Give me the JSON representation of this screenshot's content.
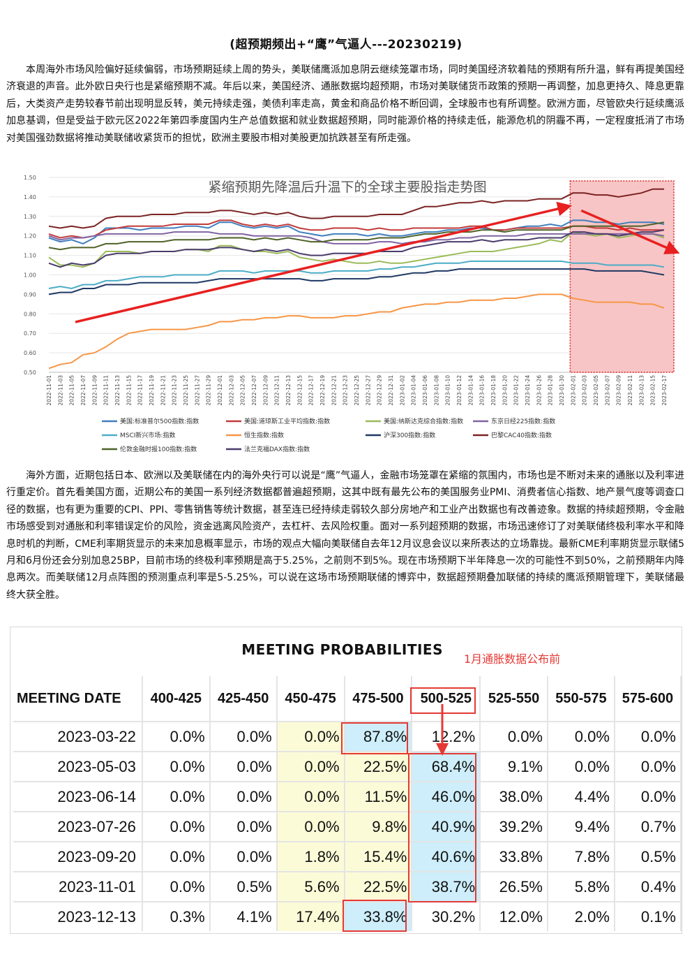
{
  "doc": {
    "title": "(超预期频出+“鹰”气逼人---20230219)",
    "paragraph1": "本周海外市场风险偏好延续偏弱，市场预期延续上周的势头，美联储鹰派加息阴云继续笼罩市场，同时美国经济软着陆的预期有所升温，鲜有再提美国经济衰退的声音。此外欧日央行也是紧缩预期不减。年后以来，美国经济、通胀数据均超预期，市场对美联储货币政策的预期一再调整，加息更持久、降息更靠后，大类资产走势较春节前出现明显反转，美元持续走强，美债利率走高，黄金和商品价格不断回调，全球股市也有所调整。欧洲方面，尽管欧央行延续鹰派加息基调，但是受益于欧元区2022年第四季度国内生产总值数据和就业数据超预期，同时能源价格的持续走低，能源危机的阴霾不再，一定程度抵消了市场对美国强劲数据将推动美联储收紧货币的担忧，欧洲主要股市相对美股更加抗跌甚至有所走强。",
    "paragraph2": "海外方面，近期包括日本、欧洲以及美联储在内的海外央行可以说是“鹰”气逼人，金融市场笼罩在紧缩的氛围内，市场也是不断对未来的通胀以及利率进行重定价。首先看美国方面，近期公布的美国一系列经济数据都普遍超预期，这其中既有最先公布的美国服务业PMI、消费者信心指数、地产景气度等调查口径的数据，也有更为重要的CPI、PPI、零售销售等统计数据，甚至连已经持续走弱较久部分房地产和工业产出数据也有改善迹象。数据的持续超预期，令金融市场感受到对通胀和利率错误定价的风险，资金逃离风险资产，去杠杆、去风险权重。面对一系列超预期的数据，市场迅速修订了对美联储终极利率水平和降息时机的判断，CME利率期货显示的未来加息概率显示，市场的观点大幅向美联储自去年12月议息会议以来所表达的立场靠拢。最新CME利率期货显示联储5月和6月份还会分别加息25BP，目前市场的终极利率预期是高于5.25%，之前则不到5%。现在市场预期下半年降息一次的可能性不到50%，之前预期年内降息两次。而美联储12月点阵图的预测重点利率是5-5.25%，可以说在这场市场预期联储的博弈中，数据超预期叠加联储的持续的鹰派预期管理下，美联储最终大获全胜。"
  },
  "chart_data": {
    "type": "line",
    "title": "紧缩预期先降温后升温下的全球主要股指走势图",
    "ylim": [
      0.5,
      1.5
    ],
    "yticks": [
      "1.50",
      "1.40",
      "1.30",
      "1.20",
      "1.10",
      "1.00",
      "0.90",
      "0.80",
      "0.70",
      "0.60",
      "0.50"
    ],
    "x": [
      "2022-11-01",
      "2022-11-03",
      "2022-11-05",
      "2022-11-07",
      "2022-11-09",
      "2022-11-11",
      "2022-11-13",
      "2022-11-15",
      "2022-11-17",
      "2022-11-19",
      "2022-11-21",
      "2022-11-23",
      "2022-11-25",
      "2022-11-27",
      "2022-11-29",
      "2022-12-01",
      "2022-12-03",
      "2022-12-05",
      "2022-12-07",
      "2022-12-09",
      "2022-12-11",
      "2022-12-13",
      "2022-12-15",
      "2022-12-17",
      "2022-12-19",
      "2022-12-21",
      "2022-12-23",
      "2022-12-25",
      "2022-12-27",
      "2022-12-29",
      "2022-12-31",
      "2023-01-02",
      "2023-01-04",
      "2023-01-06",
      "2023-01-08",
      "2023-01-10",
      "2023-01-12",
      "2023-01-14",
      "2023-01-16",
      "2023-01-18",
      "2023-01-20",
      "2023-01-22",
      "2023-01-24",
      "2023-01-26",
      "2023-01-28",
      "2023-01-30",
      "2023-02-01",
      "2023-02-03",
      "2023-02-05",
      "2023-02-07",
      "2023-02-09",
      "2023-02-11",
      "2023-02-13",
      "2023-02-15",
      "2023-02-17"
    ],
    "series": [
      {
        "name": "美国:标准普尔500指数:指数",
        "color": "#3f7fbf",
        "values": [
          1.19,
          1.17,
          1.18,
          1.16,
          1.19,
          1.24,
          1.24,
          1.24,
          1.23,
          1.24,
          1.24,
          1.24,
          1.25,
          1.25,
          1.24,
          1.27,
          1.27,
          1.25,
          1.24,
          1.25,
          1.24,
          1.25,
          1.22,
          1.21,
          1.2,
          1.21,
          1.21,
          1.21,
          1.2,
          1.21,
          1.2,
          1.2,
          1.21,
          1.22,
          1.22,
          1.23,
          1.23,
          1.24,
          1.24,
          1.23,
          1.23,
          1.24,
          1.25,
          1.25,
          1.26,
          1.25,
          1.28,
          1.28,
          1.27,
          1.27,
          1.26,
          1.27,
          1.27,
          1.27,
          1.26
        ]
      },
      {
        "name": "美国:道琼斯工业平均指数:指数",
        "color": "#c23b3b",
        "values": [
          1.21,
          1.19,
          1.2,
          1.19,
          1.2,
          1.23,
          1.24,
          1.25,
          1.25,
          1.25,
          1.25,
          1.26,
          1.26,
          1.26,
          1.26,
          1.28,
          1.28,
          1.26,
          1.25,
          1.26,
          1.25,
          1.26,
          1.24,
          1.23,
          1.23,
          1.24,
          1.24,
          1.24,
          1.23,
          1.24,
          1.23,
          1.23,
          1.24,
          1.24,
          1.24,
          1.24,
          1.24,
          1.25,
          1.25,
          1.23,
          1.23,
          1.24,
          1.24,
          1.24,
          1.24,
          1.24,
          1.25,
          1.25,
          1.24,
          1.24,
          1.23,
          1.24,
          1.23,
          1.23,
          1.23
        ]
      },
      {
        "name": "美国:纳斯达克综合指数:指数",
        "color": "#9bbb59",
        "values": [
          1.09,
          1.05,
          1.05,
          1.04,
          1.06,
          1.12,
          1.12,
          1.12,
          1.11,
          1.12,
          1.12,
          1.12,
          1.13,
          1.13,
          1.12,
          1.15,
          1.15,
          1.13,
          1.12,
          1.12,
          1.11,
          1.12,
          1.09,
          1.08,
          1.07,
          1.08,
          1.07,
          1.06,
          1.06,
          1.07,
          1.06,
          1.06,
          1.07,
          1.08,
          1.09,
          1.1,
          1.11,
          1.12,
          1.12,
          1.12,
          1.13,
          1.14,
          1.15,
          1.16,
          1.18,
          1.17,
          1.22,
          1.21,
          1.2,
          1.21,
          1.19,
          1.2,
          1.21,
          1.21,
          1.19
        ]
      },
      {
        "name": "东京日经225指数:指数",
        "color": "#8064a2",
        "values": [
          1.2,
          1.18,
          1.19,
          1.19,
          1.2,
          1.21,
          1.21,
          1.21,
          1.21,
          1.21,
          1.21,
          1.22,
          1.22,
          1.22,
          1.22,
          1.21,
          1.21,
          1.21,
          1.2,
          1.2,
          1.2,
          1.2,
          1.2,
          1.19,
          1.17,
          1.16,
          1.16,
          1.16,
          1.16,
          1.17,
          1.17,
          1.16,
          1.17,
          1.17,
          1.18,
          1.18,
          1.19,
          1.19,
          1.2,
          1.2,
          1.2,
          1.2,
          1.21,
          1.21,
          1.21,
          1.21,
          1.21,
          1.21,
          1.21,
          1.21,
          1.21,
          1.21,
          1.21,
          1.21,
          1.2
        ]
      },
      {
        "name": "MSCI新兴市场:指数",
        "color": "#4bacc6",
        "values": [
          0.93,
          0.94,
          0.93,
          0.95,
          0.95,
          0.97,
          0.97,
          0.98,
          0.99,
          0.99,
          0.99,
          1.0,
          1.0,
          1.0,
          1.0,
          1.02,
          1.02,
          1.02,
          1.01,
          1.02,
          1.02,
          1.02,
          1.02,
          1.01,
          1.01,
          1.02,
          1.02,
          1.02,
          1.02,
          1.03,
          1.03,
          1.04,
          1.04,
          1.05,
          1.06,
          1.06,
          1.06,
          1.07,
          1.07,
          1.07,
          1.07,
          1.07,
          1.07,
          1.07,
          1.07,
          1.07,
          1.06,
          1.06,
          1.06,
          1.05,
          1.05,
          1.05,
          1.05,
          1.05,
          1.04
        ]
      },
      {
        "name": "恒生指数:指数",
        "color": "#f79646",
        "values": [
          0.52,
          0.54,
          0.55,
          0.59,
          0.6,
          0.63,
          0.67,
          0.7,
          0.71,
          0.72,
          0.72,
          0.72,
          0.72,
          0.73,
          0.74,
          0.76,
          0.76,
          0.77,
          0.77,
          0.78,
          0.78,
          0.79,
          0.79,
          0.78,
          0.78,
          0.78,
          0.79,
          0.79,
          0.8,
          0.81,
          0.81,
          0.83,
          0.84,
          0.85,
          0.85,
          0.86,
          0.86,
          0.87,
          0.87,
          0.87,
          0.88,
          0.88,
          0.89,
          0.9,
          0.9,
          0.9,
          0.88,
          0.87,
          0.86,
          0.86,
          0.86,
          0.86,
          0.85,
          0.85,
          0.83
        ]
      },
      {
        "name": "沪深300指数:指数",
        "color": "#1f3864",
        "values": [
          0.9,
          0.91,
          0.91,
          0.93,
          0.93,
          0.95,
          0.95,
          0.95,
          0.96,
          0.96,
          0.96,
          0.96,
          0.96,
          0.96,
          0.97,
          0.98,
          0.98,
          0.98,
          0.98,
          0.98,
          0.98,
          0.98,
          0.98,
          0.97,
          0.97,
          0.98,
          0.98,
          0.98,
          0.98,
          0.99,
          0.99,
          1.0,
          1.01,
          1.01,
          1.02,
          1.02,
          1.03,
          1.03,
          1.03,
          1.03,
          1.03,
          1.03,
          1.03,
          1.03,
          1.03,
          1.03,
          1.03,
          1.03,
          1.02,
          1.02,
          1.02,
          1.02,
          1.02,
          1.01,
          1.0
        ]
      },
      {
        "name": "巴黎CAC40指数:指数",
        "color": "#7b2323",
        "values": [
          1.25,
          1.24,
          1.25,
          1.24,
          1.25,
          1.29,
          1.3,
          1.3,
          1.3,
          1.31,
          1.31,
          1.31,
          1.32,
          1.32,
          1.32,
          1.33,
          1.33,
          1.32,
          1.31,
          1.32,
          1.31,
          1.32,
          1.3,
          1.29,
          1.29,
          1.3,
          1.3,
          1.3,
          1.3,
          1.31,
          1.31,
          1.31,
          1.33,
          1.35,
          1.35,
          1.36,
          1.37,
          1.37,
          1.38,
          1.37,
          1.38,
          1.38,
          1.38,
          1.39,
          1.39,
          1.39,
          1.42,
          1.42,
          1.41,
          1.41,
          1.4,
          1.41,
          1.42,
          1.44,
          1.44
        ]
      },
      {
        "name": "伦敦金融时报100指数:指数",
        "color": "#4f6228",
        "values": [
          1.14,
          1.13,
          1.14,
          1.14,
          1.14,
          1.16,
          1.16,
          1.17,
          1.17,
          1.17,
          1.17,
          1.18,
          1.18,
          1.18,
          1.18,
          1.19,
          1.19,
          1.19,
          1.18,
          1.19,
          1.18,
          1.19,
          1.18,
          1.17,
          1.17,
          1.18,
          1.18,
          1.18,
          1.18,
          1.19,
          1.19,
          1.19,
          1.2,
          1.21,
          1.21,
          1.22,
          1.22,
          1.22,
          1.23,
          1.23,
          1.22,
          1.23,
          1.23,
          1.23,
          1.23,
          1.23,
          1.25,
          1.25,
          1.25,
          1.25,
          1.25,
          1.25,
          1.25,
          1.26,
          1.27
        ]
      },
      {
        "name": "法兰克福DAX指数:指数",
        "color": "#4a3b6b",
        "values": [
          1.06,
          1.04,
          1.06,
          1.05,
          1.06,
          1.1,
          1.11,
          1.11,
          1.11,
          1.12,
          1.12,
          1.12,
          1.13,
          1.13,
          1.13,
          1.14,
          1.14,
          1.13,
          1.12,
          1.13,
          1.12,
          1.13,
          1.11,
          1.1,
          1.1,
          1.11,
          1.11,
          1.11,
          1.11,
          1.12,
          1.12,
          1.12,
          1.14,
          1.15,
          1.16,
          1.17,
          1.17,
          1.17,
          1.18,
          1.17,
          1.18,
          1.18,
          1.18,
          1.19,
          1.19,
          1.19,
          1.22,
          1.22,
          1.21,
          1.21,
          1.2,
          1.21,
          1.22,
          1.22,
          1.23
        ]
      }
    ],
    "highlight_region": [
      "2023-02-01",
      "2023-02-17"
    ],
    "annotations": [
      "red trend arrow rising to 2023-02-01",
      "red arrow falling after 2023-02-01"
    ]
  },
  "table": {
    "title": "MEETING PROBABILITIES",
    "note": "1月通胀数据公布前",
    "headers": [
      "MEETING DATE",
      "400-425",
      "425-450",
      "450-475",
      "475-500",
      "500-525",
      "525-550",
      "550-575",
      "575-600"
    ],
    "rows": [
      [
        "2023-03-22",
        "0.0%",
        "0.0%",
        "0.0%",
        "87.8%",
        "12.2%",
        "0.0%",
        "0.0%",
        "0.0%"
      ],
      [
        "2023-05-03",
        "0.0%",
        "0.0%",
        "0.0%",
        "22.5%",
        "68.4%",
        "9.1%",
        "0.0%",
        "0.0%"
      ],
      [
        "2023-06-14",
        "0.0%",
        "0.0%",
        "0.0%",
        "11.5%",
        "46.0%",
        "38.0%",
        "4.4%",
        "0.0%"
      ],
      [
        "2023-07-26",
        "0.0%",
        "0.0%",
        "0.0%",
        "9.8%",
        "40.9%",
        "39.2%",
        "9.4%",
        "0.7%"
      ],
      [
        "2023-09-20",
        "0.0%",
        "0.0%",
        "1.8%",
        "15.4%",
        "40.6%",
        "33.8%",
        "7.8%",
        "0.5%"
      ],
      [
        "2023-11-01",
        "0.0%",
        "0.5%",
        "5.6%",
        "22.5%",
        "38.7%",
        "26.5%",
        "5.8%",
        "0.4%"
      ],
      [
        "2023-12-13",
        "0.3%",
        "4.1%",
        "17.4%",
        "33.8%",
        "30.2%",
        "12.0%",
        "2.0%",
        "0.1%"
      ]
    ],
    "yellow_cells": [
      [
        0,
        3
      ],
      [
        1,
        3
      ],
      [
        2,
        3
      ],
      [
        3,
        3
      ],
      [
        4,
        3
      ],
      [
        5,
        3
      ],
      [
        6,
        3
      ],
      [
        0,
        4
      ],
      [
        1,
        4
      ],
      [
        2,
        4
      ],
      [
        3,
        4
      ],
      [
        4,
        4
      ],
      [
        5,
        4
      ]
    ],
    "blue_cells": [
      [
        0,
        4
      ],
      [
        1,
        5
      ],
      [
        2,
        5
      ],
      [
        3,
        5
      ],
      [
        4,
        5
      ],
      [
        5,
        5
      ],
      [
        6,
        4
      ]
    ]
  }
}
